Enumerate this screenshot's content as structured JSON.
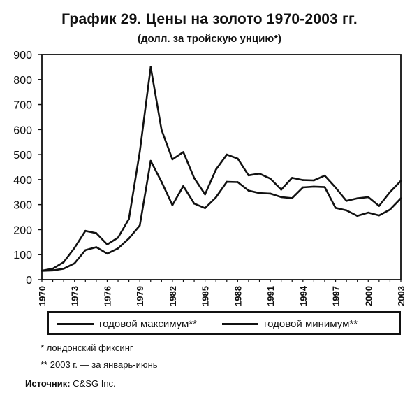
{
  "chart_data": {
    "type": "line",
    "title": "График 29. Цены на золото 1970-2003 гг.",
    "subtitle": "(долл. за тройскую унцию*)",
    "xlabel": "",
    "ylabel": "",
    "ylim": [
      0,
      900
    ],
    "xlim": [
      1970,
      2003
    ],
    "yticks": [
      0,
      100,
      200,
      300,
      400,
      500,
      600,
      700,
      800,
      900
    ],
    "xticks": [
      "1970",
      "1973",
      "1976",
      "1979",
      "1982",
      "1985",
      "1988",
      "1991",
      "1994",
      "1997",
      "2000",
      "2003"
    ],
    "grid": false,
    "legend_position": "bottom",
    "x": [
      1970,
      1971,
      1972,
      1973,
      1974,
      1975,
      1976,
      1977,
      1978,
      1979,
      1980,
      1981,
      1982,
      1983,
      1984,
      1985,
      1986,
      1987,
      1988,
      1989,
      1990,
      1991,
      1992,
      1993,
      1994,
      1995,
      1996,
      1997,
      1998,
      1999,
      2000,
      2001,
      2002,
      2003
    ],
    "series": [
      {
        "name": "годовой максимум**",
        "values": [
          36,
          44,
          70,
          127,
          195,
          186,
          141,
          168,
          243,
          512,
          850,
          599,
          481,
          510,
          406,
          341,
          440,
          500,
          484,
          417,
          424,
          404,
          360,
          407,
          398,
          397,
          416,
          368,
          315,
          325,
          330,
          295,
          350,
          395
        ]
      },
      {
        "name": "годовой минимум**",
        "values": [
          35,
          37,
          44,
          65,
          118,
          130,
          104,
          125,
          165,
          217,
          475,
          391,
          298,
          374,
          304,
          286,
          329,
          391,
          390,
          356,
          346,
          344,
          330,
          326,
          369,
          372,
          370,
          287,
          277,
          255,
          268,
          257,
          280,
          325
        ]
      }
    ]
  },
  "footnotes": [
    {
      "mark": "*",
      "text": "лондонский фиксинг"
    },
    {
      "mark": "**",
      "text": "2003 г. — за январь-июнь"
    }
  ],
  "source": {
    "label": "Источник:",
    "value": "C&SG Inc."
  },
  "colors": {
    "line": "#111111",
    "background": "#ffffff"
  }
}
